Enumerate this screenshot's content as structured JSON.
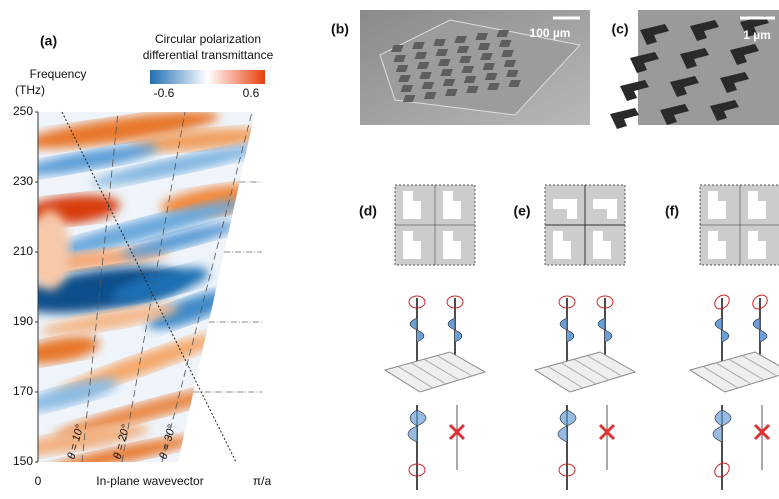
{
  "chart_data": {
    "type": "heatmap",
    "ylabel": [
      "Frequency",
      "(THz)"
    ],
    "xlabel": "In-plane wavevector",
    "panel_label": "(a)",
    "ylim": [
      150,
      250
    ],
    "yticks": [
      150,
      170,
      190,
      210,
      230,
      250
    ],
    "xlim": [
      0,
      1
    ],
    "xticks": [
      0,
      {
        "value": 1,
        "label": "π/a"
      }
    ],
    "colorbar": {
      "title": [
        "Circular polarization",
        "differential transmittance"
      ],
      "lim": [
        -0.6,
        0.6
      ],
      "ticks": [
        -0.6,
        0.6
      ],
      "colors": [
        "#1f6fb4",
        "#ffffff",
        "#e8400c"
      ]
    },
    "annotations": [
      "θ = 10°",
      "θ = 20°",
      "θ = 30°"
    ]
  },
  "panels": {
    "b": {
      "label": "(b)",
      "scale_bar": "100 µm"
    },
    "c": {
      "label": "(c)",
      "scale_bar": "1 µm"
    },
    "d": {
      "label": "(d)"
    },
    "e": {
      "label": "(e)"
    },
    "f": {
      "label": "(f)"
    }
  }
}
